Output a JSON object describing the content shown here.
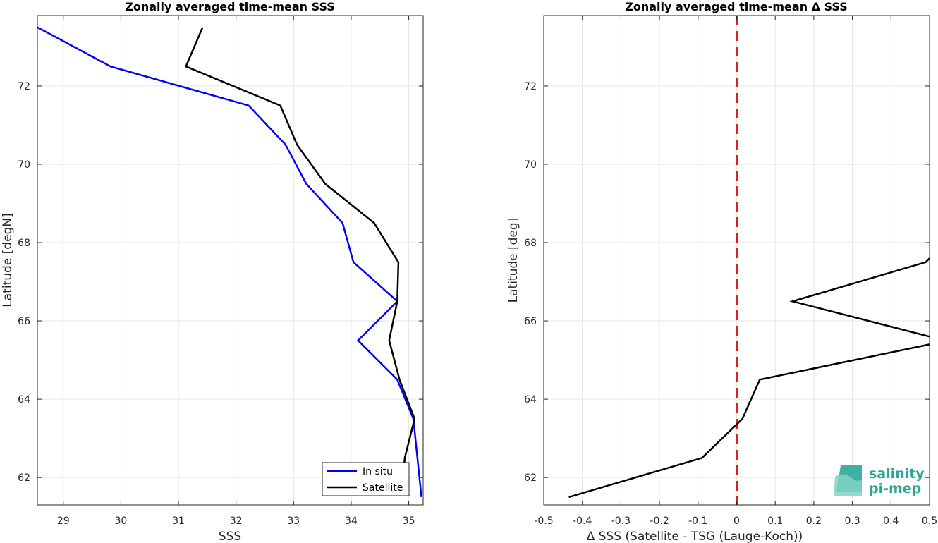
{
  "chart_data": [
    {
      "type": "line",
      "title": "Zonally averaged time-mean SSS",
      "xlabel": "SSS",
      "ylabel": "Latitude [degN]",
      "xlim": [
        28.55,
        35.25
      ],
      "ylim": [
        61.3,
        73.8
      ],
      "xticks": [
        29,
        30,
        31,
        32,
        33,
        34,
        35
      ],
      "yticks": [
        62,
        64,
        66,
        68,
        70,
        72
      ],
      "grid": true,
      "legend": "bottom-right",
      "series": [
        {
          "name": "In situ",
          "color": "#0000ff",
          "x": [
            28.55,
            29.82,
            32.22,
            32.86,
            33.22,
            33.85,
            34.04,
            34.8,
            34.12,
            34.8,
            35.08,
            35.22
          ],
          "y": [
            73.5,
            72.5,
            71.5,
            70.5,
            69.5,
            68.5,
            67.5,
            66.5,
            65.5,
            64.5,
            63.5,
            61.5
          ]
        },
        {
          "name": "Satellite",
          "color": "#000000",
          "x": [
            31.42,
            31.13,
            32.77,
            33.06,
            33.55,
            34.4,
            34.82,
            34.8,
            34.66,
            34.84,
            35.1,
            34.93,
            34.9
          ],
          "y": [
            73.5,
            72.5,
            71.5,
            70.5,
            69.5,
            68.5,
            67.5,
            66.5,
            65.5,
            64.5,
            63.5,
            62.5,
            61.9
          ]
        }
      ]
    },
    {
      "type": "line",
      "title": "Zonally averaged time-mean Δ SSS",
      "xlabel": "Δ SSS (Satellite - TSG (Lauge-Koch))",
      "ylabel": "Latitude [deg]",
      "xlim": [
        -0.5,
        0.5
      ],
      "ylim": [
        61.3,
        73.8
      ],
      "xticks": [
        -0.5,
        -0.4,
        -0.3,
        -0.2,
        -0.1,
        0,
        0.1,
        0.2,
        0.3,
        0.4,
        0.5
      ],
      "yticks": [
        62,
        64,
        66,
        68,
        70,
        72
      ],
      "grid": true,
      "series": [
        {
          "color": "#000000",
          "x": [
            0.5,
            0.49,
            0.145,
            0.5
          ],
          "y": [
            67.6,
            67.5,
            66.5,
            65.6
          ]
        },
        {
          "color": "#000000",
          "x": [
            0.5,
            0.06,
            0.015,
            -0.09,
            -0.435
          ],
          "y": [
            65.4,
            64.5,
            63.5,
            62.5,
            61.5
          ]
        }
      ],
      "reference_line": {
        "x": 0,
        "color": "#e01e1e",
        "style": "dashed"
      }
    }
  ],
  "logo": {
    "line1": "salinity",
    "line2": "pi-mep",
    "color": "#2aa79a"
  }
}
